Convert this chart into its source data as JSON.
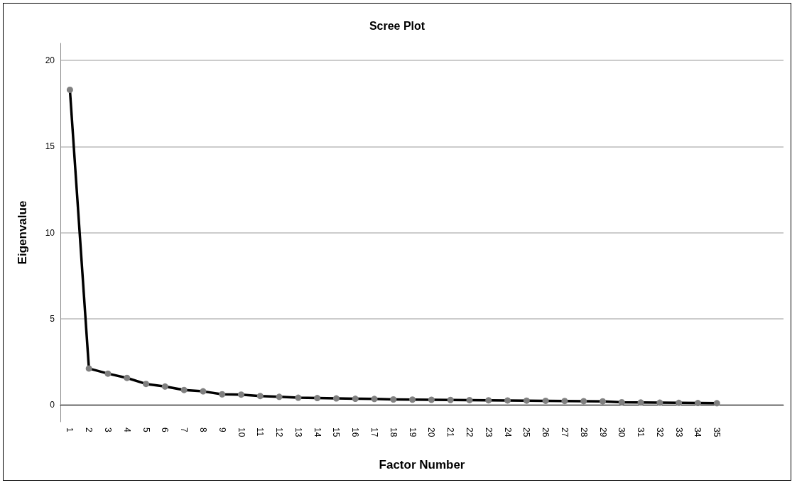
{
  "chart_data": {
    "type": "line",
    "title": "Scree Plot",
    "xlabel": "Factor Number",
    "ylabel": "Eigenvalue",
    "categories": [
      "1",
      "2",
      "3",
      "4",
      "5",
      "6",
      "7",
      "8",
      "9",
      "10",
      "11",
      "12",
      "13",
      "14",
      "15",
      "16",
      "17",
      "18",
      "19",
      "20",
      "21",
      "22",
      "23",
      "24",
      "25",
      "26",
      "27",
      "28",
      "29",
      "30",
      "31",
      "32",
      "33",
      "34",
      "35"
    ],
    "series": [
      {
        "color": "#000000",
        "values": [
          18.3,
          2.1,
          1.8,
          1.55,
          1.2,
          1.05,
          0.85,
          0.77,
          0.6,
          0.58,
          0.5,
          0.45,
          0.4,
          0.38,
          0.36,
          0.34,
          0.33,
          0.3,
          0.29,
          0.28,
          0.27,
          0.26,
          0.25,
          0.24,
          0.23,
          0.22,
          0.21,
          0.2,
          0.19,
          0.14,
          0.12,
          0.11,
          0.1,
          0.09,
          0.08
        ]
      }
    ],
    "ylim": [
      -1,
      21
    ],
    "yticks": [
      0,
      5,
      10,
      15,
      20
    ],
    "grid": "y",
    "marker": "circle",
    "line_style": "solid"
  }
}
